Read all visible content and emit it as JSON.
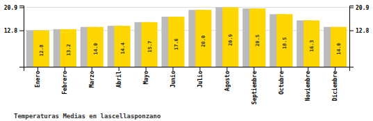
{
  "chart_data": {
    "type": "bar",
    "title": "Temperaturas Medias en lascellasponzano",
    "categories": [
      "Enero",
      "Febrero",
      "Marzo",
      "Abril",
      "Mayo",
      "Junio",
      "Julio",
      "Agosto",
      "Septiembre",
      "Octubre",
      "Noviembre",
      "Diciembre"
    ],
    "series": [
      {
        "color": "#BBBBBB",
        "values": [
          12.8,
          13.2,
          14.0,
          14.4,
          15.7,
          17.6,
          20.0,
          20.9,
          20.5,
          18.5,
          16.3,
          14.0
        ]
      },
      {
        "color": "#FFD700",
        "values": [
          12.8,
          13.2,
          14.0,
          14.4,
          15.7,
          17.6,
          20.0,
          20.9,
          20.5,
          18.5,
          16.3,
          14.0
        ],
        "value_labels": [
          "12.8",
          "13.2",
          "14.0",
          "14.4",
          "15.7",
          "17.6",
          "20.0",
          "20.9",
          "20.5",
          "18.5",
          "16.3",
          "14.0"
        ]
      }
    ],
    "ylim": [
      0,
      21.527
    ],
    "yticks": [
      12.8,
      20.9
    ],
    "grid": true,
    "data_labels": true
  }
}
